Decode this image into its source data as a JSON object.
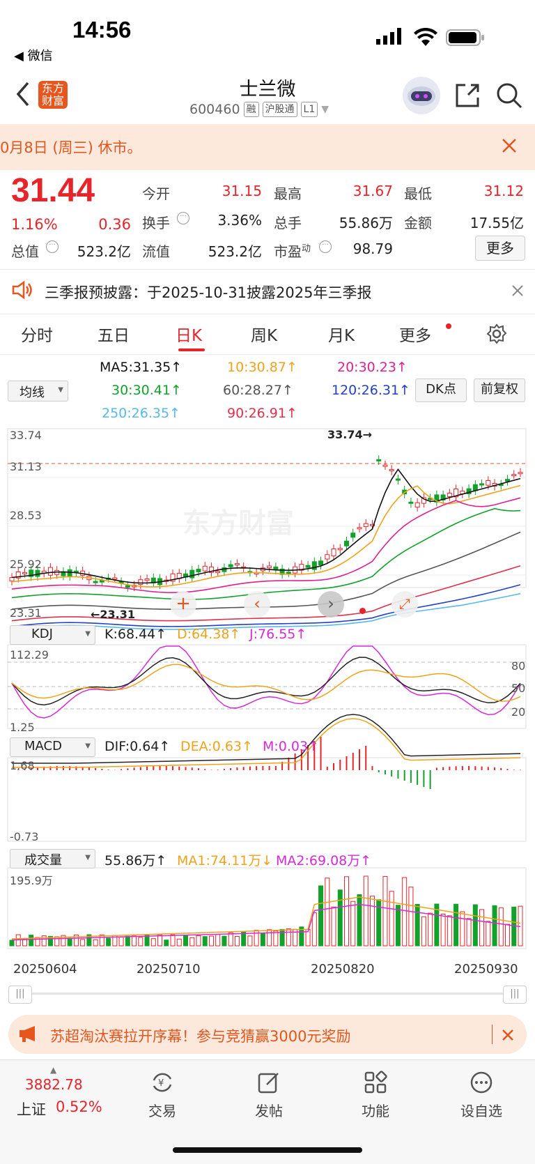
{
  "status_bar": {
    "time": "14:56",
    "back_label": "◀ 微信"
  },
  "header": {
    "logo_text": "东方财富",
    "stock_name": "士兰微",
    "stock_code": "600460",
    "tags": [
      "融",
      "沪股通",
      "L1"
    ]
  },
  "notice": {
    "text": "0月8日 (周三) 休市。"
  },
  "quote": {
    "price": "31.44",
    "change_pct": "1.16%",
    "change_amt": "0.36",
    "open_label": "今开",
    "open": "31.15",
    "high_label": "最高",
    "high": "31.67",
    "low_label": "最低",
    "low": "31.12",
    "turnover_label": "换手",
    "turnover": "3.36%",
    "volume_label": "总手",
    "volume": "55.86万",
    "amount_label": "金额",
    "amount": "17.55亿",
    "total_cap_label": "总值",
    "total_cap": "523.2亿",
    "float_cap_label": "流值",
    "float_cap": "523.2亿",
    "pe_label": "市盈",
    "pe_sup": "动",
    "pe": "98.79",
    "more_label": "更多"
  },
  "announcement": {
    "text": "三季报预披露：于2025-10-31披露2025年三季报"
  },
  "tabs": [
    {
      "label": "分时"
    },
    {
      "label": "五日"
    },
    {
      "label": "日K"
    },
    {
      "label": "周K"
    },
    {
      "label": "月K"
    },
    {
      "label": "更多"
    }
  ],
  "ma_legend": {
    "selector": "均线",
    "ma5": "MA5:31.35↑",
    "ma10": "10:30.87↑",
    "ma20": "20:30.23↑",
    "ma30": "30:30.41↑",
    "ma60": "60:28.27↑",
    "ma120": "120:26.31↑",
    "ma250": "250:26.35↑",
    "ma90": "90:26.91↑",
    "dk_label": "DK点",
    "adjust_label": "前复权"
  },
  "kline": {
    "y_labels": [
      "33.74",
      "31.13",
      "28.53",
      "25.92",
      "23.31"
    ],
    "max_marker": "33.74→",
    "min_marker": "←23.31",
    "watermark": "东方财富"
  },
  "kdj": {
    "selector": "KDJ",
    "k": "K:68.44↑",
    "d": "D:64.38↑",
    "j": "J:76.55↑",
    "y_top": "112.29",
    "y_bottom": "1.25",
    "levels": [
      "80",
      "50",
      "20"
    ]
  },
  "macd": {
    "selector": "MACD",
    "dif": "DIF:0.64↑",
    "dea": "DEA:0.63↑",
    "m": "M:0.03↑",
    "y_top": "1.68",
    "y_bottom": "-0.73"
  },
  "volume": {
    "selector": "成交量",
    "value": "55.86万↑",
    "ma1": "MA1:74.11万↓",
    "ma2": "MA2:69.08万↑",
    "y_top": "195.9万"
  },
  "dates": [
    "20250604",
    "20250710",
    "20250820",
    "20250930"
  ],
  "promo": {
    "text": "苏超淘汰赛拉开序幕！参与竞猜赢3000元奖励"
  },
  "bottom_nav": {
    "index_value": "3882.78",
    "index_name": "上证",
    "index_change": "0.52%",
    "items": [
      {
        "label": "交易"
      },
      {
        "label": "发帖"
      },
      {
        "label": "功能"
      },
      {
        "label": "设自选"
      }
    ]
  },
  "colors": {
    "up": "#e8242b",
    "down": "#12a12b",
    "accent": "#e8561f"
  }
}
